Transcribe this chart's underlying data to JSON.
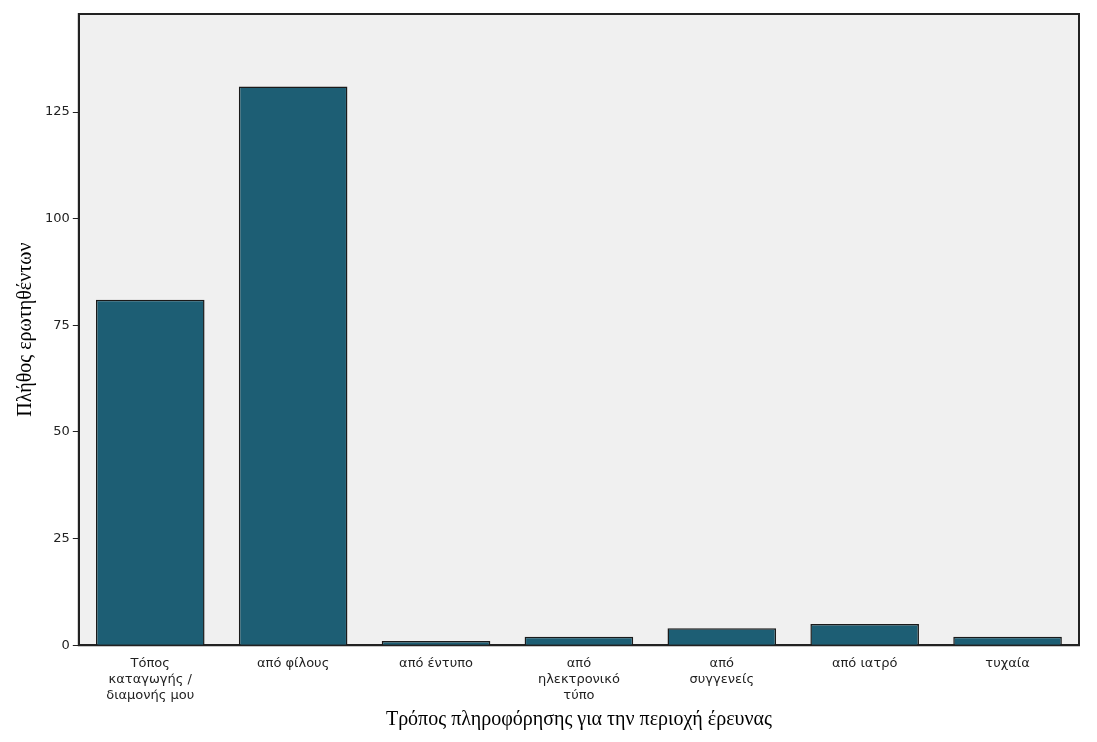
{
  "chart_data": {
    "type": "bar",
    "xlabel": "Τρόπος πληροφόρησης για την περιοχή έρευνας",
    "ylabel": "Πλήθος ερωτηθέντων",
    "categories": [
      "Τόπος\nκαταγωγής /\nδιαμονής μου",
      "από φίλους",
      "από έντυπο",
      "από\nηλεκτρονικό\nτύπο",
      "από\nσυγγενείς",
      "από ιατρό",
      "τυχαία"
    ],
    "values": [
      81,
      131,
      1,
      2,
      4,
      5,
      2
    ],
    "color": "#1d5e74",
    "ylim": [
      0,
      148
    ],
    "yticks": [
      0,
      25,
      50,
      75,
      100,
      125
    ],
    "grid": false,
    "legend": false
  }
}
